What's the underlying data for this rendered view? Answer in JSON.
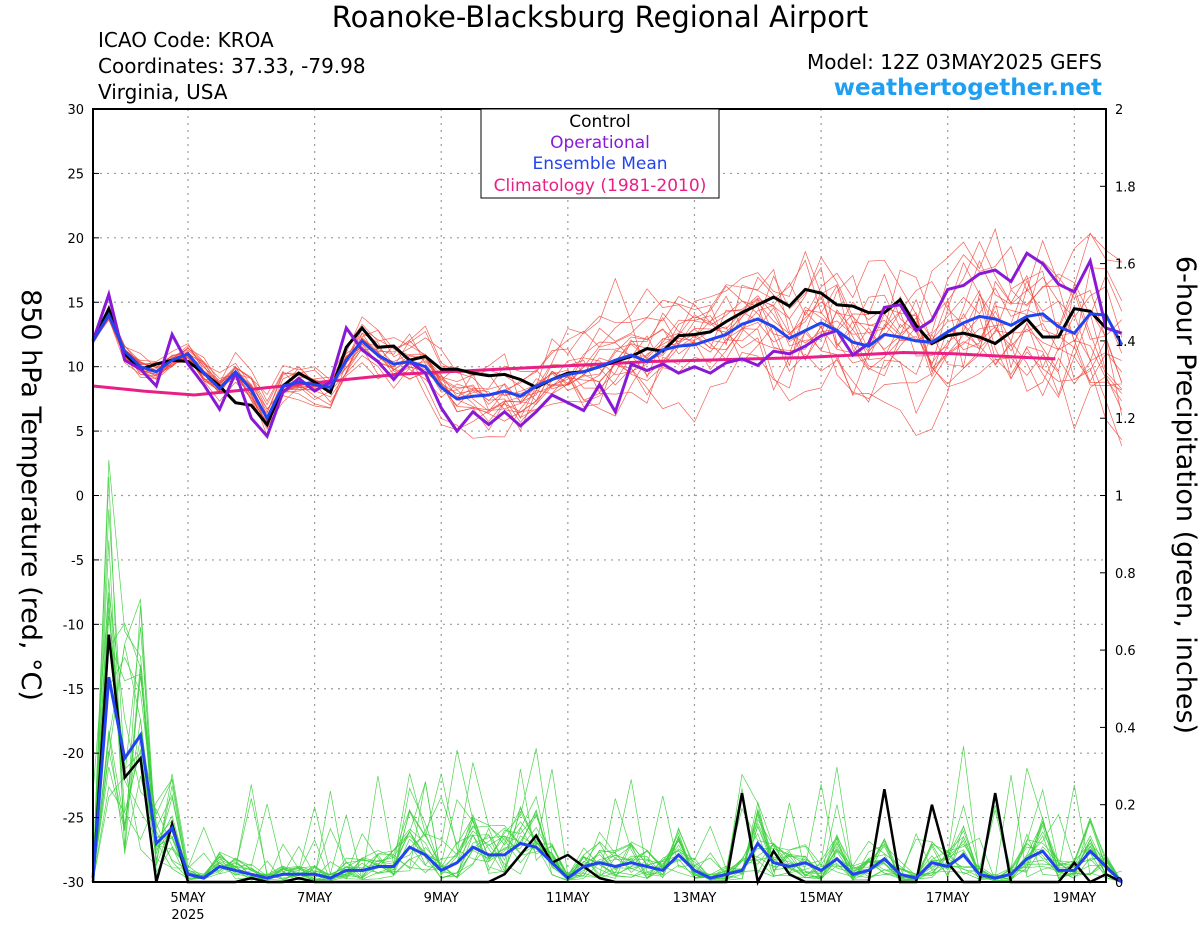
{
  "header": {
    "title": "Roanoke-Blacksburg Regional Airport",
    "icao": "ICAO Code: KROA",
    "coordinates": "Coordinates: 37.33, -79.98",
    "region": "Virginia, USA",
    "model": "Model: 12Z 03MAY2025 GEFS",
    "website": "weathertogether.net"
  },
  "legend": {
    "control": "Control",
    "operational": "Operational",
    "ensemble_mean": "Ensemble Mean",
    "climatology": "Climatology (1981-2010)"
  },
  "colors": {
    "control": "#000000",
    "operational": "#8a19d6",
    "ensemble_mean": "#2244ee",
    "climatology": "#ea1f86",
    "temp_members": "#f0463c",
    "precip_members": "#3ccf3c",
    "website": "#1e9ff2"
  },
  "chart_data": {
    "type": "line",
    "ylabel": "850 hPa Temperature (red, °C)",
    "y2label": "6-hour Precipitation (green, inches)",
    "ylim": [
      -30,
      30
    ],
    "y2lim": [
      0,
      2
    ],
    "yticks": [
      30,
      25,
      20,
      15,
      10,
      5,
      0,
      -5,
      -10,
      -15,
      -20,
      -25,
      -30
    ],
    "y2ticks": [
      2,
      1.8,
      1.6,
      1.4,
      1.2,
      1,
      0.8,
      0.6,
      0.4,
      0.2,
      0
    ],
    "xlim": [
      3.5,
      19.5
    ],
    "xticks": [
      {
        "x": 5,
        "label": "5MAY",
        "sub": "2025"
      },
      {
        "x": 7,
        "label": "7MAY",
        "sub": ""
      },
      {
        "x": 9,
        "label": "9MAY",
        "sub": ""
      },
      {
        "x": 11,
        "label": "11MAY",
        "sub": ""
      },
      {
        "x": 13,
        "label": "13MAY",
        "sub": ""
      },
      {
        "x": 15,
        "label": "15MAY",
        "sub": ""
      },
      {
        "x": 17,
        "label": "17MAY",
        "sub": ""
      },
      {
        "x": 19,
        "label": "19MAY",
        "sub": ""
      }
    ],
    "grid": true,
    "step_days": 0.25,
    "start_x": 3.5,
    "series": [
      {
        "name": "Control",
        "axis": "temp",
        "values": [
          12.0,
          14.5,
          11.0,
          9.8,
          10.2,
          10.5,
          10.4,
          9.5,
          8.5,
          7.2,
          7.0,
          5.5,
          8.5,
          9.5,
          8.8,
          8.0,
          11.5,
          13.0,
          11.5,
          11.6,
          10.5,
          10.8,
          9.8,
          9.8,
          9.5,
          9.3,
          9.4,
          9.0,
          8.4,
          9.0,
          9.5,
          9.6,
          10.0,
          10.4,
          10.8,
          11.4,
          11.2,
          12.4,
          12.5,
          12.7,
          13.5,
          14.2,
          14.8,
          15.4,
          14.7,
          16.0,
          15.7,
          14.8,
          14.7,
          14.2,
          14.2,
          15.2,
          13.2,
          11.8,
          12.4,
          12.6,
          12.3,
          11.8,
          12.7,
          13.7,
          12.3,
          12.3,
          14.5,
          14.3,
          13.0
        ]
      },
      {
        "name": "Operational",
        "axis": "temp",
        "values": [
          12.0,
          15.6,
          10.5,
          9.8,
          8.5,
          12.5,
          10.2,
          8.6,
          6.7,
          9.5,
          6.0,
          4.6,
          8.0,
          9.1,
          8.1,
          8.8,
          13.0,
          11.3,
          10.4,
          9.0,
          10.4,
          9.5,
          6.8,
          5.0,
          6.5,
          5.5,
          6.5,
          5.4,
          6.5,
          7.8,
          7.2,
          6.6,
          8.6,
          6.5,
          10.2,
          9.7,
          10.2,
          9.5,
          10.0,
          9.5,
          10.3,
          10.6,
          10.1,
          11.2,
          11.0,
          11.6,
          12.4,
          12.8,
          10.9,
          11.8,
          14.6,
          14.8,
          12.8,
          13.6,
          16.0,
          16.3,
          17.2,
          17.5,
          16.6,
          18.8,
          18.0,
          16.4,
          15.8,
          18.2,
          13.0,
          12.6
        ]
      },
      {
        "name": "Ensemble Mean",
        "axis": "temp",
        "values": [
          12.0,
          14.0,
          11.2,
          10.0,
          9.6,
          10.5,
          11.0,
          9.5,
          8.3,
          9.6,
          8.2,
          6.0,
          8.5,
          8.8,
          8.6,
          8.4,
          10.5,
          12.0,
          10.9,
          10.2,
          10.4,
          10.0,
          8.4,
          7.5,
          7.7,
          7.8,
          8.1,
          7.7,
          8.5,
          9.0,
          9.4,
          9.6,
          10.0,
          10.5,
          10.9,
          10.4,
          11.3,
          11.6,
          11.7,
          12.1,
          12.5,
          13.3,
          13.7,
          13.1,
          12.2,
          12.8,
          13.4,
          12.8,
          11.9,
          11.6,
          12.5,
          12.3,
          12.0,
          11.9,
          12.7,
          13.4,
          13.9,
          13.7,
          13.2,
          13.9,
          14.1,
          13.1,
          12.6,
          14.1,
          14.0,
          11.7
        ]
      },
      {
        "name": "Climatology (1981-2010)",
        "axis": "temp",
        "values": [
          8.5,
          8.1,
          7.8,
          8.2,
          8.6,
          9.0,
          9.4,
          9.6,
          9.8,
          10.0,
          10.2,
          10.4,
          10.5,
          10.6,
          10.7,
          10.9,
          11.1,
          11.0,
          10.8,
          10.6
        ]
      },
      {
        "name": "Control",
        "axis": "precip",
        "values": [
          0.0,
          0.64,
          0.27,
          0.32,
          0.0,
          0.15,
          0.0,
          0.0,
          0.0,
          0.0,
          0.01,
          0.0,
          0.0,
          0.01,
          0.0,
          0.0,
          0.0,
          0.0,
          0.0,
          0.0,
          0.0,
          0.0,
          0.0,
          0.0,
          0.0,
          0.0,
          0.02,
          0.07,
          0.12,
          0.05,
          0.07,
          0.04,
          0.01,
          0.0,
          0.0,
          0.0,
          0.0,
          0.0,
          0.0,
          0.0,
          0.0,
          0.23,
          0.0,
          0.08,
          0.02,
          0.0,
          0.0,
          0.0,
          0.0,
          0.0,
          0.24,
          0.0,
          0.0,
          0.2,
          0.05,
          0.0,
          0.0,
          0.23,
          0.0,
          0.0,
          0.0,
          0.0,
          0.05,
          0.0,
          0.02,
          0.0
        ]
      },
      {
        "name": "Ensemble Mean",
        "axis": "precip",
        "values": [
          0.01,
          0.53,
          0.32,
          0.38,
          0.1,
          0.14,
          0.02,
          0.01,
          0.04,
          0.03,
          0.02,
          0.01,
          0.02,
          0.02,
          0.02,
          0.01,
          0.03,
          0.03,
          0.04,
          0.04,
          0.09,
          0.07,
          0.03,
          0.05,
          0.09,
          0.07,
          0.07,
          0.1,
          0.09,
          0.05,
          0.01,
          0.04,
          0.05,
          0.04,
          0.05,
          0.04,
          0.03,
          0.07,
          0.03,
          0.01,
          0.02,
          0.03,
          0.1,
          0.05,
          0.04,
          0.05,
          0.03,
          0.06,
          0.02,
          0.03,
          0.06,
          0.02,
          0.01,
          0.05,
          0.04,
          0.07,
          0.02,
          0.01,
          0.02,
          0.06,
          0.08,
          0.03,
          0.03,
          0.08,
          0.04,
          0.0
        ]
      }
    ]
  }
}
